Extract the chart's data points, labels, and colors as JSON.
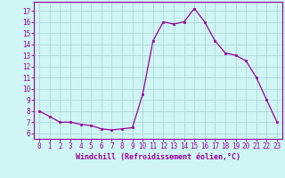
{
  "x": [
    0,
    1,
    2,
    3,
    4,
    5,
    6,
    7,
    8,
    9,
    10,
    11,
    12,
    13,
    14,
    15,
    16,
    17,
    18,
    19,
    20,
    21,
    22,
    23
  ],
  "y": [
    8.0,
    7.5,
    7.0,
    7.0,
    6.8,
    6.7,
    6.4,
    6.3,
    6.4,
    6.5,
    9.5,
    14.3,
    16.0,
    15.8,
    16.0,
    17.2,
    16.0,
    14.3,
    13.2,
    13.0,
    12.5,
    11.0,
    9.0,
    7.0
  ],
  "line_color": "#990099",
  "marker": "s",
  "marker_size": 2.0,
  "line_width": 0.9,
  "bg_color": "#cff5f5",
  "grid_color": "#b0d8d8",
  "xlabel": "Windchill (Refroidissement éolien,°C)",
  "ylabel": "",
  "xlim": [
    -0.5,
    23.5
  ],
  "ylim": [
    5.5,
    17.8
  ],
  "yticks": [
    6,
    7,
    8,
    9,
    10,
    11,
    12,
    13,
    14,
    15,
    16,
    17
  ],
  "xticks": [
    0,
    1,
    2,
    3,
    4,
    5,
    6,
    7,
    8,
    9,
    10,
    11,
    12,
    13,
    14,
    15,
    16,
    17,
    18,
    19,
    20,
    21,
    22,
    23
  ],
  "xlabel_color": "#990099",
  "tick_color": "#990099",
  "axis_color": "#990099",
  "label_fontsize": 6.0,
  "tick_fontsize": 5.5
}
